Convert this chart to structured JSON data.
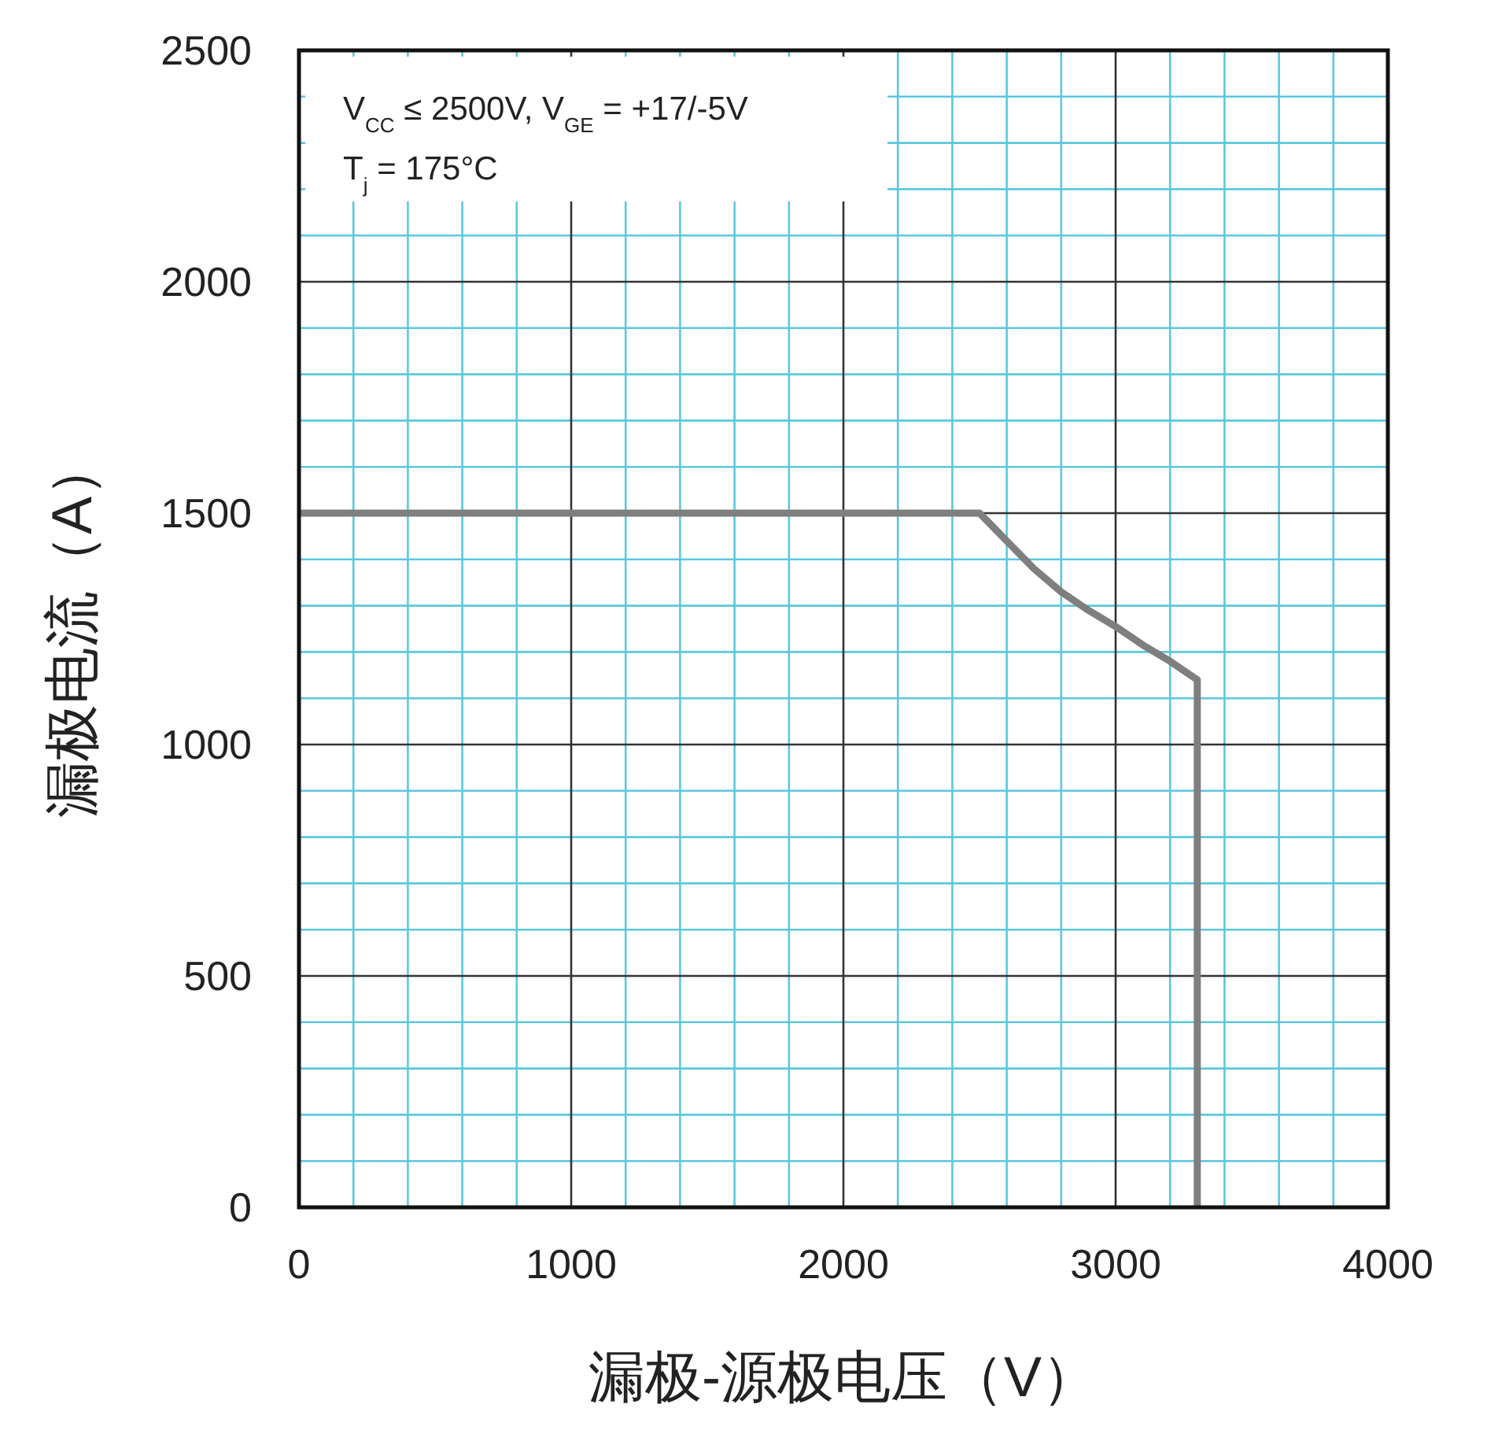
{
  "chart_data": {
    "type": "line",
    "xlabel": "漏极-源极电压（V）",
    "ylabel": "漏极电流（A）",
    "xlim": [
      0,
      4000
    ],
    "ylim": [
      0,
      2500
    ],
    "xticks": [
      0,
      {
        "value": 200,
        "label": null
      },
      {
        "value": 400,
        "label": null
      },
      {
        "value": 600,
        "label": null
      },
      {
        "value": 800,
        "label": null
      },
      1000,
      {
        "value": 1200,
        "label": null
      },
      {
        "value": 1400,
        "label": null
      },
      {
        "value": 1600,
        "label": null
      },
      {
        "value": 1800,
        "label": null
      },
      2000,
      {
        "value": 2200,
        "label": null
      },
      {
        "value": 2400,
        "label": null
      },
      {
        "value": 2600,
        "label": null
      },
      {
        "value": 2800,
        "label": null
      },
      3000,
      {
        "value": 3200,
        "label": null
      },
      {
        "value": 3400,
        "label": null
      },
      {
        "value": 3600,
        "label": null
      },
      {
        "value": 3800,
        "label": null
      },
      4000
    ],
    "yticks": [
      0,
      {
        "value": 100,
        "label": null
      },
      {
        "value": 200,
        "label": null
      },
      {
        "value": 300,
        "label": null
      },
      {
        "value": 400,
        "label": null
      },
      500,
      {
        "value": 600,
        "label": null
      },
      {
        "value": 700,
        "label": null
      },
      {
        "value": 800,
        "label": null
      },
      {
        "value": 900,
        "label": null
      },
      1000,
      {
        "value": 1100,
        "label": null
      },
      {
        "value": 1200,
        "label": null
      },
      {
        "value": 1300,
        "label": null
      },
      {
        "value": 1400,
        "label": null
      },
      1500,
      {
        "value": 1600,
        "label": null
      },
      {
        "value": 1700,
        "label": null
      },
      {
        "value": 1800,
        "label": null
      },
      {
        "value": 1900,
        "label": null
      },
      2000,
      {
        "value": 2100,
        "label": null
      },
      {
        "value": 2200,
        "label": null
      },
      {
        "value": 2300,
        "label": null
      },
      {
        "value": 2400,
        "label": null
      },
      2500
    ],
    "grid": true,
    "marker": "none",
    "line_style": "solid",
    "annotations": [
      "V$_{CC}$ ≤ 2500V, V$_{GE}$ = +17/-5V",
      "T$_{j}$ = 175°C"
    ],
    "series": [
      {
        "color": "#7f7f7f",
        "x": [
          0,
          2500,
          2600,
          2700,
          2800,
          2900,
          3000,
          3100,
          3200,
          3300,
          3300
        ],
        "values": [
          1500,
          1500,
          1440,
          1380,
          1330,
          1290,
          1255,
          1215,
          1180,
          1140,
          0
        ]
      }
    ]
  }
}
